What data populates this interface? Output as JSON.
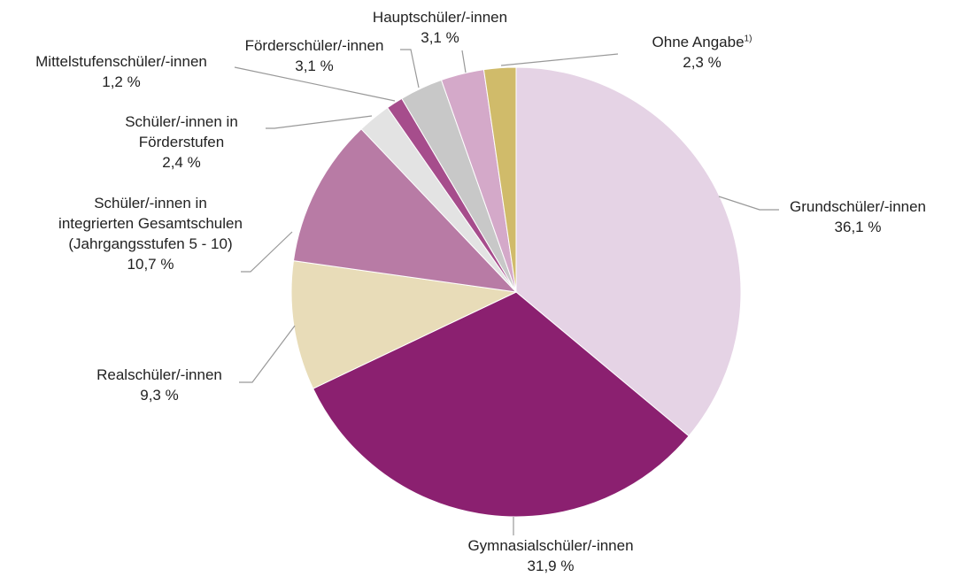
{
  "chart_data": {
    "type": "pie",
    "categories": [
      "Grundschüler/-innen",
      "Gymnasialschüler/-innen",
      "Realschüler/-innen",
      "Schüler/-innen in integrierten Gesamtschulen (Jahrgangsstufen 5 - 10)",
      "Schüler/-innen in Förderstufen",
      "Mittelstufenschüler/-innen",
      "Förderschüler/-innen",
      "Hauptschüler/-innen",
      "Ohne Angabe"
    ],
    "category_footnotes": [
      null,
      null,
      null,
      null,
      null,
      null,
      null,
      null,
      "1)"
    ],
    "values": [
      36.1,
      31.9,
      9.3,
      10.7,
      2.4,
      1.2,
      3.1,
      3.1,
      2.3
    ],
    "value_labels": [
      "36,1 %",
      "31,9 %",
      "9,3 %",
      "10,7 %",
      "2,4 %",
      "1,2 %",
      "3,1 %",
      "3,1 %",
      "2,3 %"
    ],
    "colors": [
      "#e5d3e5",
      "#8b2070",
      "#e8dcb8",
      "#b87ba5",
      "#e3e3e3",
      "#a64d8c",
      "#c8c8c8",
      "#d4a9c9",
      "#d0bb6a"
    ]
  }
}
